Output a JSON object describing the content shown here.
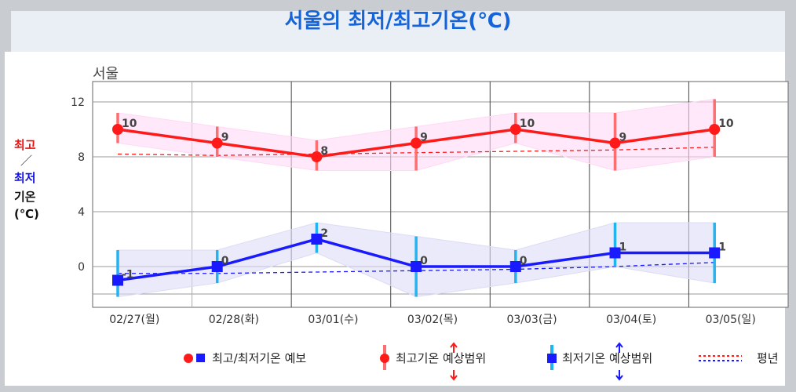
{
  "title": "서울의 최저/최고기온(℃)",
  "city": "서울",
  "y_axis": {
    "line1": "최고",
    "line2": "／",
    "line3": "최저",
    "line4": "기온",
    "line5": "(℃)"
  },
  "colors": {
    "high": "#ff1a1a",
    "low": "#1a1aff",
    "high_band": "#ff6e6e",
    "low_band": "#22b4f0"
  },
  "chart_data": {
    "type": "line",
    "categories": [
      "02/27(월)",
      "02/28(화)",
      "03/01(수)",
      "03/02(목)",
      "03/03(금)",
      "03/04(토)",
      "03/05(일)"
    ],
    "ylim": [
      -3,
      13.5
    ],
    "yticks": [
      0,
      4,
      8,
      12
    ],
    "series": [
      {
        "name": "최고기온",
        "values": [
          10,
          9,
          8,
          9,
          10,
          9,
          10
        ],
        "range_low": [
          9,
          8,
          7,
          7,
          9,
          7,
          8
        ],
        "range_high": [
          11.2,
          10.2,
          9.2,
          10.2,
          11.2,
          11.2,
          12.2
        ],
        "normal": [
          8.2,
          8.1,
          8.2,
          8.3,
          8.4,
          8.5,
          8.7
        ]
      },
      {
        "name": "최저기온",
        "values": [
          -1,
          0,
          2,
          0,
          0,
          1,
          1
        ],
        "range_low": [
          -2.2,
          -1.2,
          1,
          -2.2,
          -1.2,
          0,
          -1.2
        ],
        "range_high": [
          1.2,
          1.2,
          3.2,
          2.2,
          1.2,
          3.2,
          3.2
        ],
        "normal": [
          -0.5,
          -0.5,
          -0.4,
          -0.3,
          -0.2,
          0,
          0.3
        ]
      }
    ],
    "grid": true
  },
  "legend": {
    "forecast": "최고/최저기온 예보",
    "high_range": "최고기온 예상범위",
    "low_range": "최저기온 예상범위",
    "normal": "평년"
  }
}
